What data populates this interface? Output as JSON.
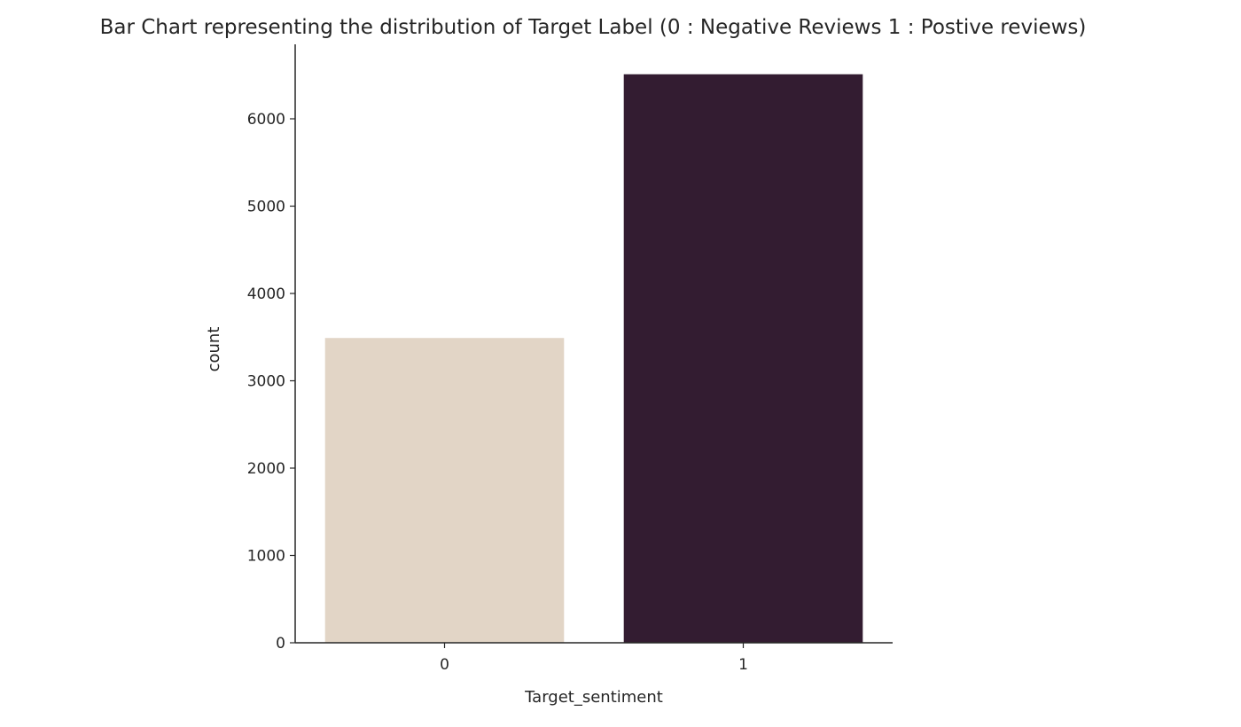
{
  "chart_data": {
    "type": "bar",
    "title": "Bar Chart representing the distribution of Target Label (0 : Negative Reviews 1 : Postive reviews)",
    "xlabel": "Target_sentiment",
    "ylabel": "count",
    "categories": [
      "0",
      "1"
    ],
    "values": [
      3490,
      6510
    ],
    "colors": [
      "#e2d5c6",
      "#331c31"
    ],
    "ylim": [
      0,
      6900
    ],
    "yticks": [
      0,
      1000,
      2000,
      3000,
      4000,
      5000,
      6000
    ],
    "grid": false,
    "legend": "none"
  }
}
